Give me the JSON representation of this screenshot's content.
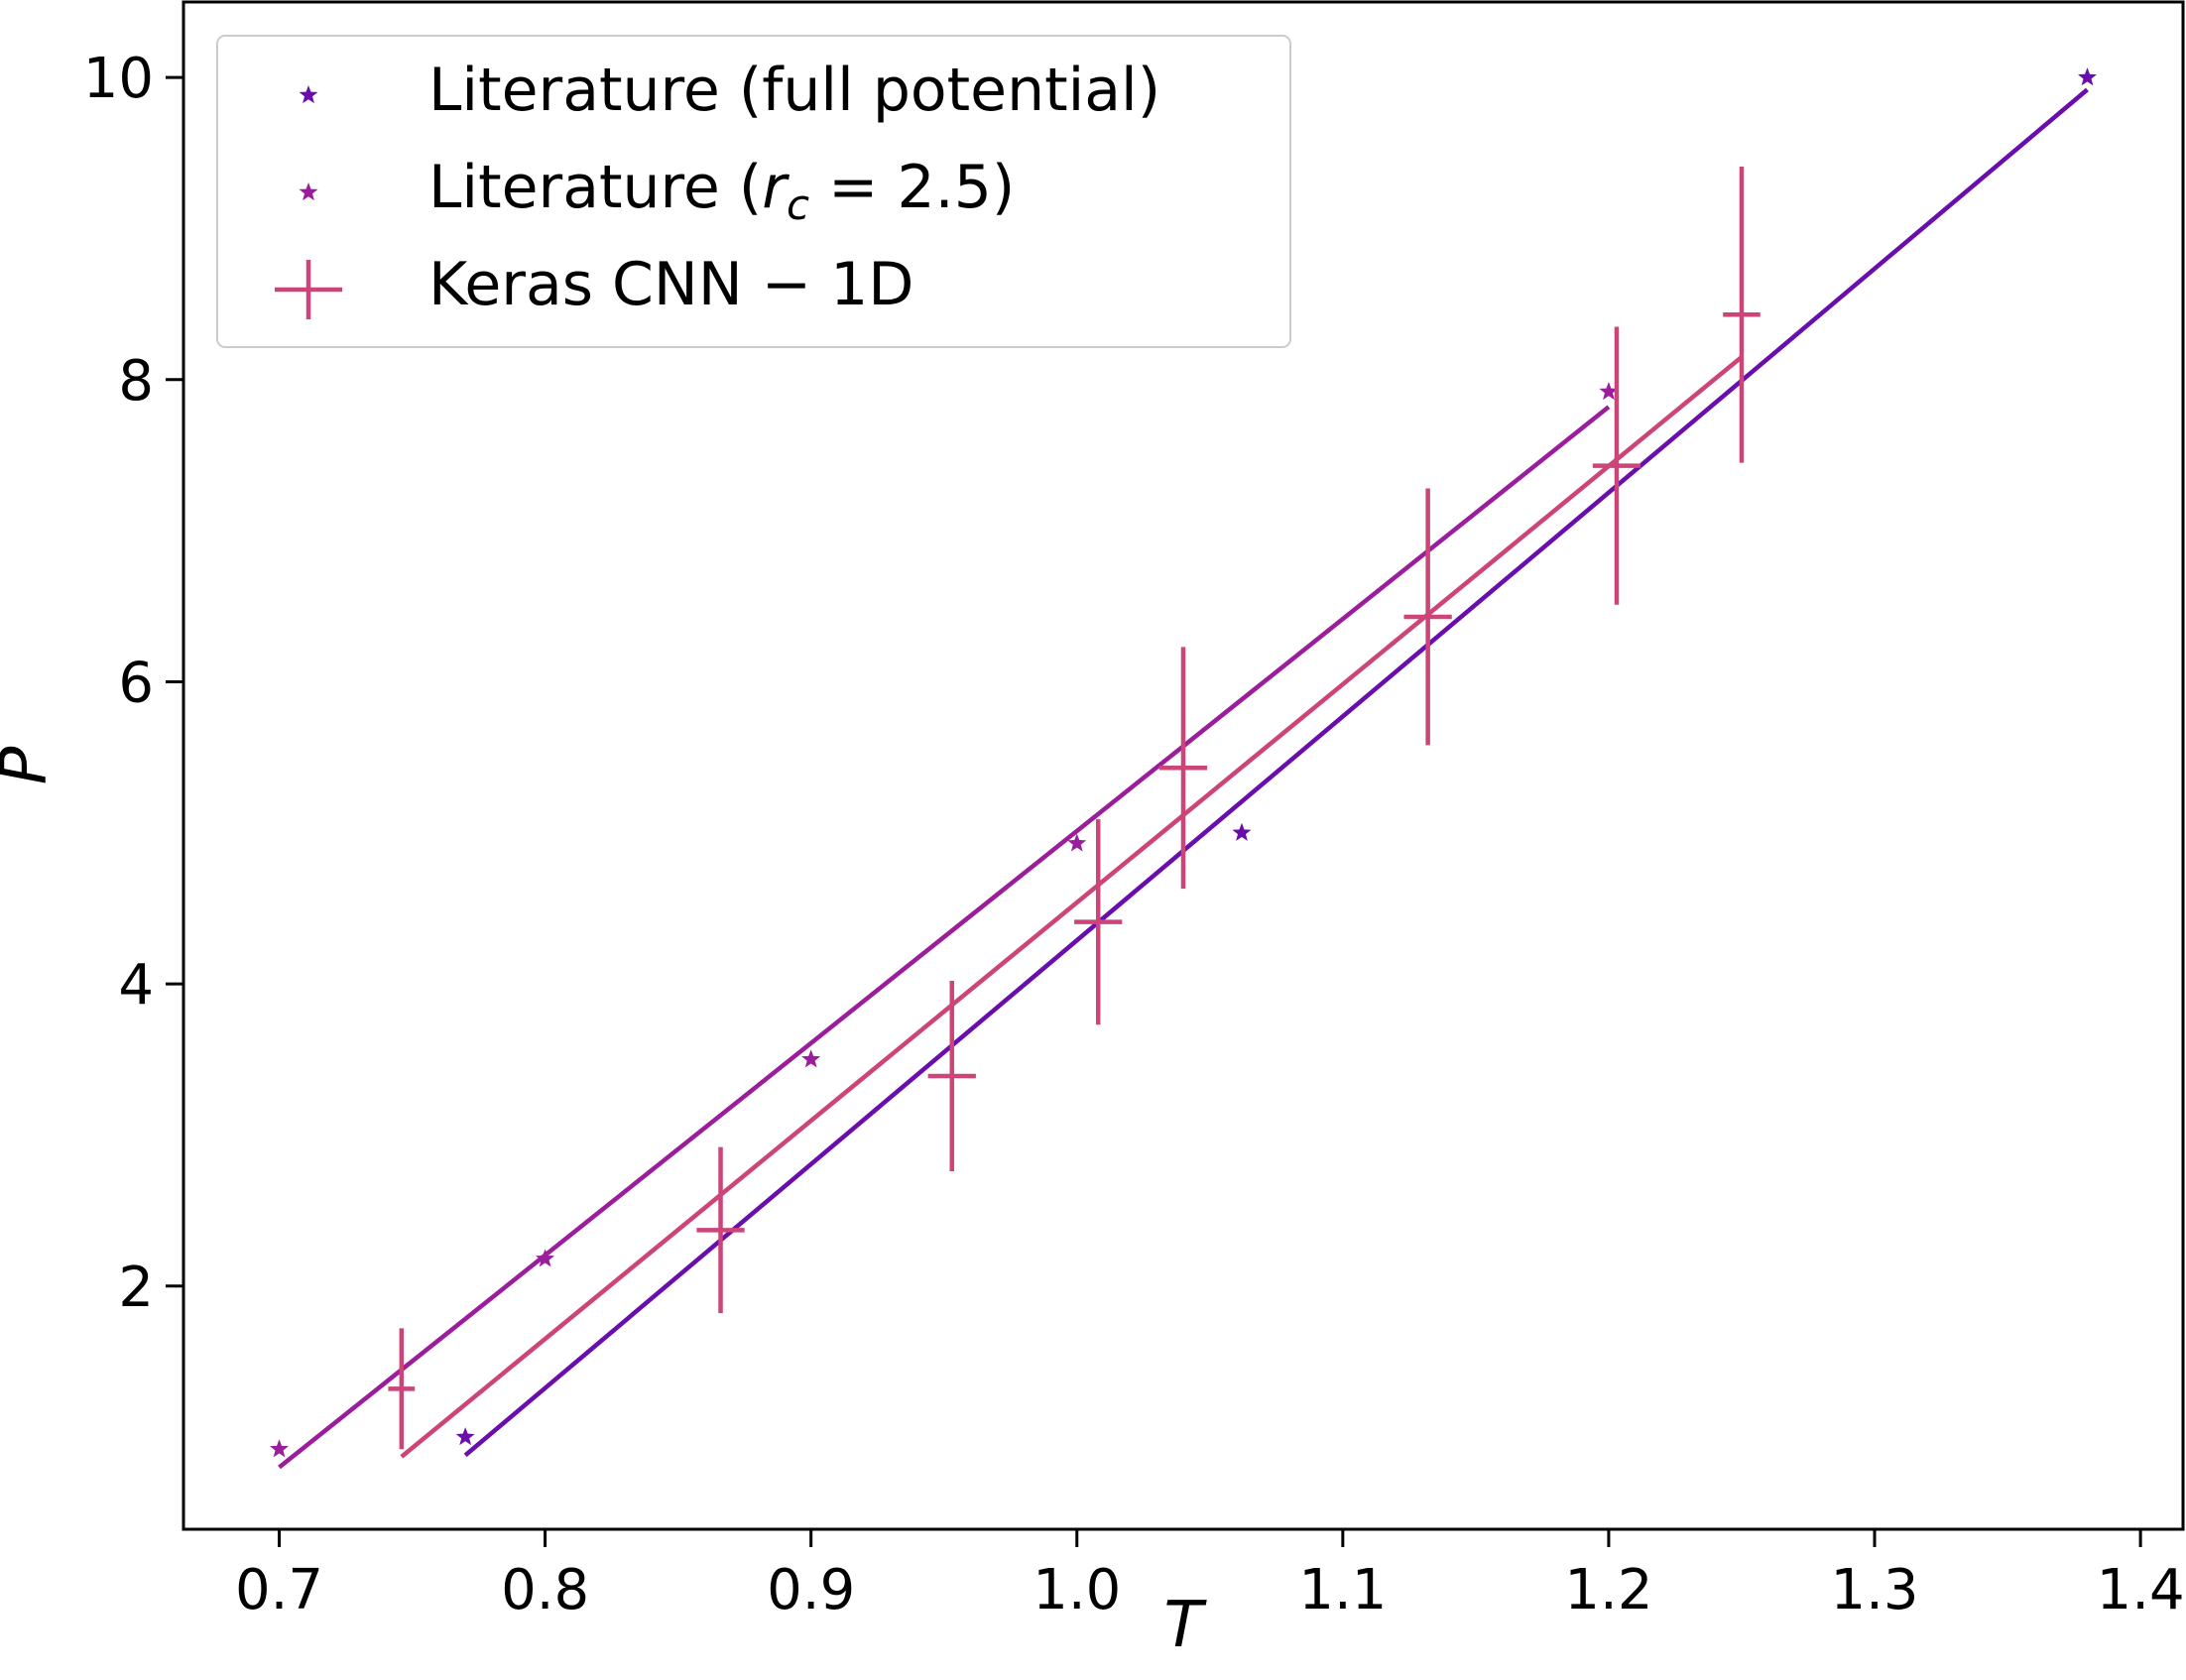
{
  "chart_data": {
    "type": "scatter",
    "xlabel": "T",
    "ylabel": "P",
    "xlim": [
      0.664,
      1.416
    ],
    "ylim": [
      0.39,
      10.5
    ],
    "xticks": [
      "0.7",
      "0.8",
      "0.9",
      "1.0",
      "1.1",
      "1.2",
      "1.3",
      "1.4"
    ],
    "yticks": [
      "2",
      "4",
      "6",
      "8",
      "10"
    ],
    "xtick_values": [
      0.7,
      0.8,
      0.9,
      1.0,
      1.1,
      1.2,
      1.3,
      1.4
    ],
    "ytick_values": [
      2,
      4,
      6,
      8,
      10
    ],
    "grid": false,
    "legend_position": "top-left",
    "legend": [
      {
        "label": "Literature  (full  potential)",
        "marker": "star",
        "color": "#6a0dad"
      },
      {
        "label_parts": [
          "Literature  (",
          "r",
          "c",
          " = 2.5)"
        ],
        "marker": "star",
        "color": "#9b1d9b"
      },
      {
        "label": "Keras  CNN − 1D",
        "marker": "errorbar",
        "color": "#cc4478"
      }
    ],
    "series": [
      {
        "name": "Literature  (full  potential)",
        "kind": "scatter",
        "marker": "star",
        "color": "#6a0dad",
        "x": [
          0.77,
          1.062,
          1.38
        ],
        "y": [
          1.0,
          5.0,
          10.0
        ]
      },
      {
        "name": "Literature  (rc = 2.5)",
        "kind": "scatter",
        "marker": "star",
        "color": "#9b1d9b",
        "x": [
          0.7,
          0.8,
          0.9,
          1.0,
          1.2
        ],
        "y": [
          0.92,
          2.18,
          3.5,
          4.93,
          7.92
        ]
      },
      {
        "name": "Keras  CNN − 1D",
        "kind": "errorbar",
        "color": "#cc4478",
        "x": [
          0.746,
          0.866,
          0.953,
          1.008,
          1.04,
          1.132,
          1.203,
          1.25
        ],
        "y": [
          1.32,
          2.37,
          3.39,
          4.41,
          5.43,
          6.43,
          7.43,
          8.43
        ],
        "xerr": [
          0.005,
          0.009,
          0.009,
          0.009,
          0.009,
          0.009,
          0.009,
          0.007
        ],
        "yerr": [
          0.4,
          0.55,
          0.63,
          0.68,
          0.8,
          0.85,
          0.92,
          0.98
        ]
      }
    ],
    "fit_lines": [
      {
        "color": "#6a0dad",
        "x": [
          0.77,
          1.38
        ],
        "y": [
          0.88,
          9.92
        ]
      },
      {
        "color": "#9b1d9b",
        "x": [
          0.7,
          1.2
        ],
        "y": [
          0.8,
          7.82
        ]
      },
      {
        "color": "#cc4478",
        "x": [
          0.746,
          1.25
        ],
        "y": [
          0.87,
          8.15
        ]
      }
    ]
  }
}
